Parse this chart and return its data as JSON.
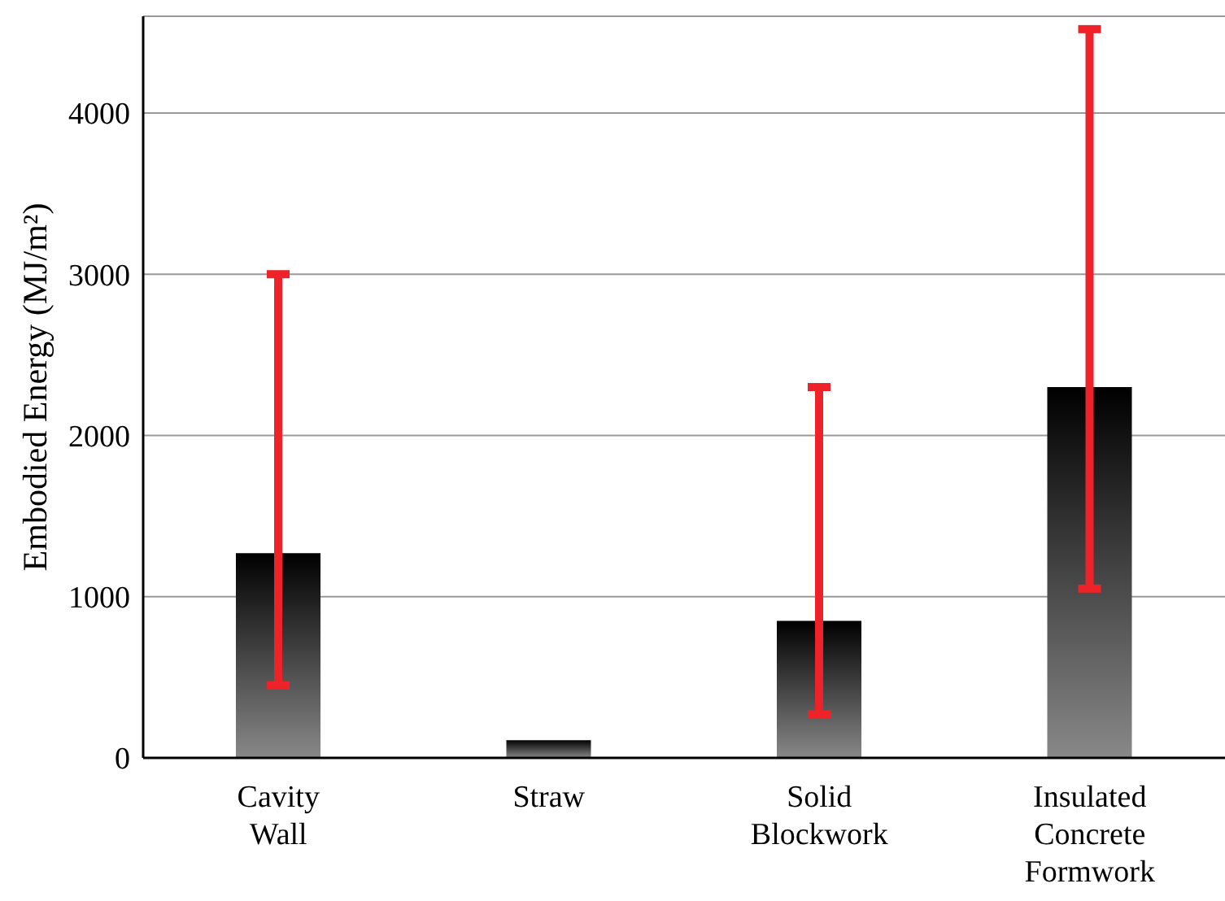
{
  "chart_data": {
    "type": "bar",
    "ylabel": "Embodied Energy (MJ/m²)",
    "categories": [
      "Cavity Wall",
      "Straw",
      "Solid Blockwork",
      "Insulated Concrete Formwork"
    ],
    "series": [
      {
        "color": "#000000",
        "values": [
          1270,
          110,
          850,
          2300
        ],
        "errors": [
          [
            450,
            3000
          ],
          null,
          [
            270,
            2300
          ],
          [
            1050,
            4520
          ]
        ]
      }
    ],
    "ylim": [
      0,
      4600
    ],
    "yticks": [
      0,
      1000,
      2000,
      3000,
      4000
    ],
    "grid": "y",
    "legend": false
  }
}
